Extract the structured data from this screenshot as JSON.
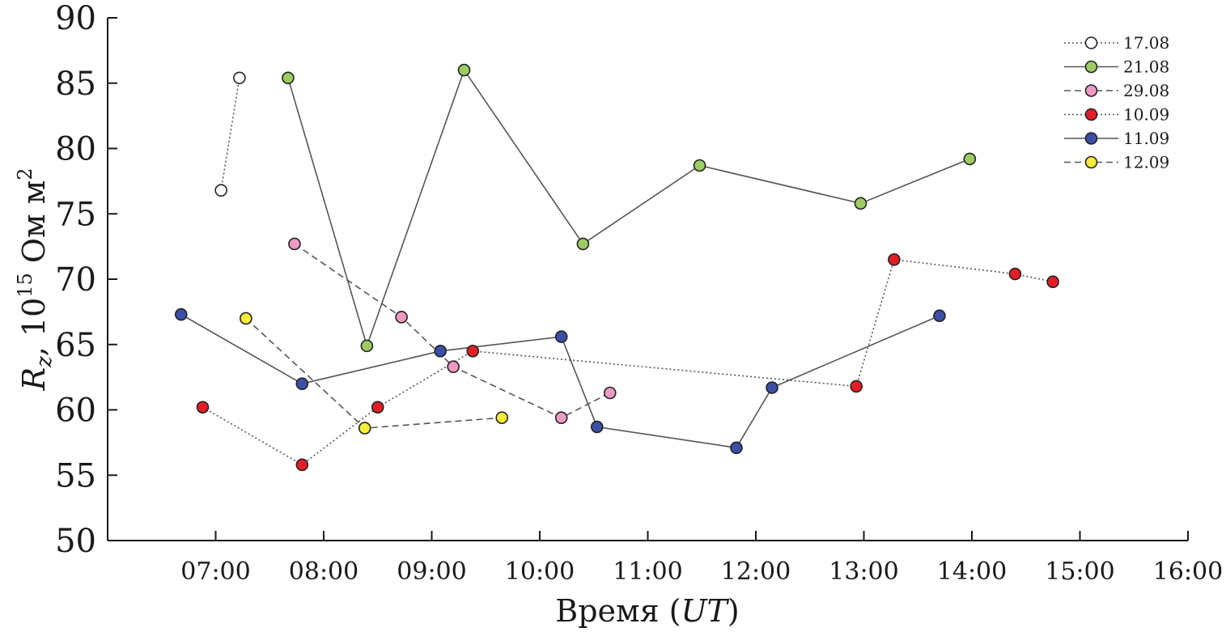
{
  "chart_data": {
    "type": "line",
    "title": "",
    "xlabel_prefix": "Время (",
    "xlabel_italic": "UT",
    "xlabel_suffix": ")",
    "ylabel_var": "R",
    "ylabel_sub": "z",
    "ylabel_mid": ", 10",
    "ylabel_exp": "15",
    "ylabel_unit": " Ом м",
    "ylabel_unit_exp": "2",
    "xlim": [
      6.0,
      16.0
    ],
    "ylim": [
      50,
      90
    ],
    "x_ticks": [
      7,
      8,
      9,
      10,
      11,
      12,
      13,
      14,
      15,
      16
    ],
    "x_tick_labels": [
      "07:00",
      "08:00",
      "09:00",
      "10:00",
      "11:00",
      "12:00",
      "13:00",
      "14:00",
      "15:00",
      "16:00"
    ],
    "y_ticks": [
      50,
      55,
      60,
      65,
      70,
      75,
      80,
      85,
      90
    ],
    "y_tick_labels": [
      "50",
      "55",
      "60",
      "65",
      "70",
      "75",
      "80",
      "85",
      "90"
    ],
    "grid": false,
    "legend_position": "top-right",
    "series": [
      {
        "name": "17.08",
        "line_style": "dotted",
        "color": "#ffffff",
        "points": [
          [
            7.05,
            76.8
          ],
          [
            7.22,
            85.4
          ]
        ]
      },
      {
        "name": "21.08",
        "line_style": "solid",
        "color": "#9ccc63",
        "points": [
          [
            7.67,
            85.4
          ],
          [
            8.4,
            64.9
          ],
          [
            9.3,
            86.0
          ],
          [
            10.4,
            72.7
          ],
          [
            11.48,
            78.7
          ],
          [
            12.97,
            75.8
          ],
          [
            13.98,
            79.2
          ]
        ]
      },
      {
        "name": "29.08",
        "line_style": "dashed",
        "color": "#ee9ac4",
        "points": [
          [
            7.73,
            72.7
          ],
          [
            8.72,
            67.1
          ],
          [
            9.2,
            63.3
          ],
          [
            10.2,
            59.4
          ],
          [
            10.65,
            61.3
          ]
        ]
      },
      {
        "name": "10.09",
        "line_style": "dotted",
        "color": "#e41e26",
        "points": [
          [
            6.88,
            60.2
          ],
          [
            7.8,
            55.8
          ],
          [
            8.5,
            60.2
          ],
          [
            9.38,
            64.5
          ],
          [
            12.93,
            61.8
          ],
          [
            13.28,
            71.5
          ],
          [
            14.4,
            70.4
          ],
          [
            14.75,
            69.8
          ]
        ]
      },
      {
        "name": "11.09",
        "line_style": "solid",
        "color": "#3b4fa4",
        "points": [
          [
            6.68,
            67.3
          ],
          [
            7.8,
            62.0
          ],
          [
            9.08,
            64.5
          ],
          [
            10.2,
            65.6
          ],
          [
            10.53,
            58.7
          ],
          [
            11.82,
            57.1
          ],
          [
            12.15,
            61.7
          ],
          [
            13.7,
            67.2
          ]
        ]
      },
      {
        "name": "12.09",
        "line_style": "dashed",
        "color": "#f7ec3a",
        "points": [
          [
            7.28,
            67.0
          ],
          [
            8.38,
            58.6
          ],
          [
            9.65,
            59.4
          ]
        ]
      }
    ]
  }
}
